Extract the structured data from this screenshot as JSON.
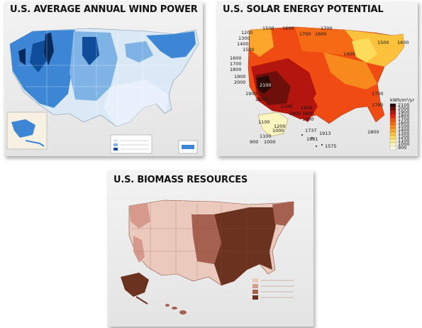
{
  "panels": {
    "wind": {
      "title": "U.S. AVERAGE ANNUAL WIND POWER",
      "colors": {
        "light": "#dbe9f7",
        "mid": "#7fb3e6",
        "strong": "#3d86d6",
        "deep": "#0f4c99",
        "darkest": "#072a5c"
      }
    },
    "solar": {
      "title": "U.S. SOLAR ENERGY POTENTIAL",
      "legend_title": "kWh/m²/yr",
      "legend_values": [
        "2100",
        "2000",
        "1900",
        "1800",
        "1700",
        "1600",
        "1500",
        "1400",
        "1300",
        "1200",
        "1100",
        "1000",
        "900"
      ],
      "legend_colors": [
        "#2b0a05",
        "#6e0f0b",
        "#b5150f",
        "#e0260f",
        "#f04b12",
        "#f56a15",
        "#f8891c",
        "#fba52a",
        "#fdc23c",
        "#fddc5c",
        "#fdec8c",
        "#fef6c0",
        "#fffbe6"
      ],
      "contours": {
        "c2100": "2100",
        "c2000": "2000",
        "c1900": "1900",
        "c1800": "1800",
        "c1700": "1700",
        "c1600": "1600",
        "c1500": "1500",
        "c1400": "1400",
        "c1300": "1300",
        "c1200": "1200",
        "c1100": "1100",
        "c1000": "1000",
        "c900": "900",
        "c1737": "1737",
        "c1913": "1913",
        "c1881": "1881",
        "c1575": "1575"
      }
    },
    "biomass": {
      "title": "U.S. BIOMASS RESOURCES",
      "colors": {
        "low": "#ecc9bd",
        "medium": "#d69a8c",
        "high": "#a5604f",
        "highest": "#6b3220"
      }
    }
  }
}
